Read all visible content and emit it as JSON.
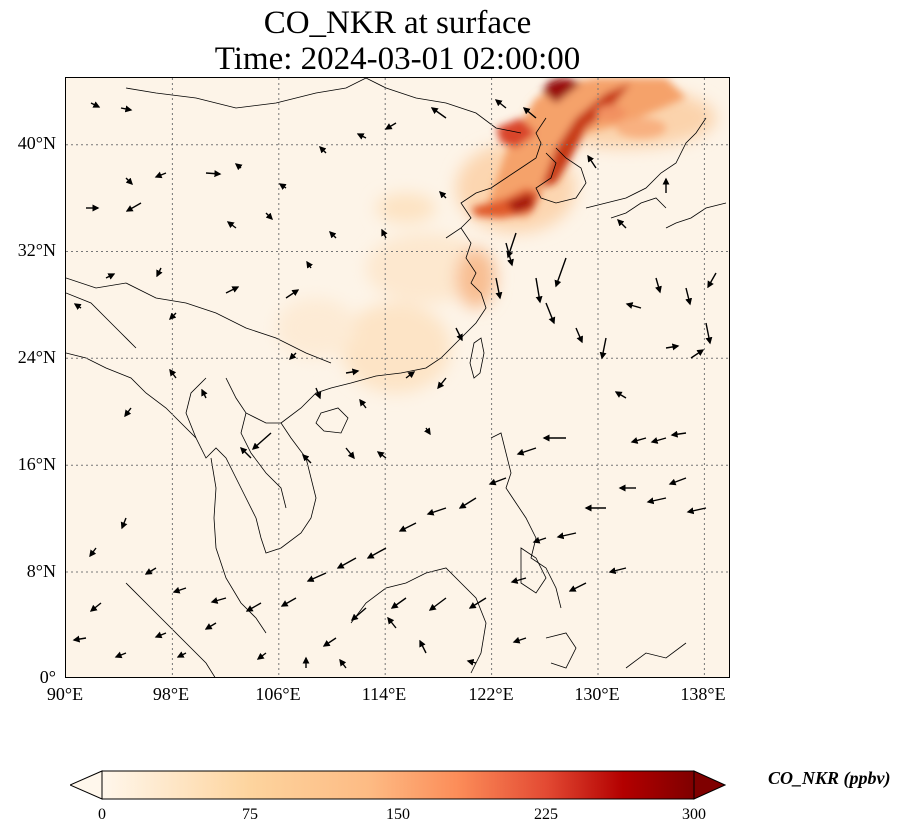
{
  "title": {
    "line1": "CO_NKR at surface",
    "line2": "Time: 2024-03-01 02:00:00"
  },
  "map": {
    "lat_ticks": [
      "40°N",
      "32°N",
      "24°N",
      "16°N",
      "8°N",
      "0°"
    ],
    "lon_ticks": [
      "90°E",
      "98°E",
      "106°E",
      "114°E",
      "122°E",
      "130°E",
      "138°E"
    ],
    "lon_range": [
      90,
      140
    ],
    "lat_range": [
      0,
      45
    ],
    "field_colors": {
      "background": "#fdf4e8",
      "low": "#fde3c3",
      "mid": "#f5a26b",
      "high": "#c83a17",
      "max": "#7f0000"
    }
  },
  "colorbar": {
    "label": "CO_NKR (ppbv)",
    "ticks": [
      "0",
      "75",
      "150",
      "225",
      "300"
    ],
    "range": [
      0,
      300
    ],
    "extend": "both"
  }
}
